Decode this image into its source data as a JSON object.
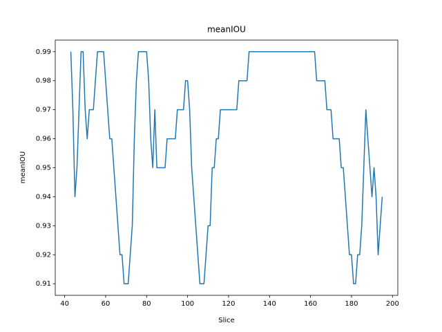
{
  "chart_data": {
    "type": "line",
    "title": "meanIOU",
    "x_label": "Slice",
    "y_label": "meanIOU",
    "x": [
      43,
      44,
      45,
      46,
      47,
      48,
      49,
      50,
      51,
      52,
      54,
      55,
      56,
      59,
      60,
      61,
      62,
      63,
      64,
      65,
      66,
      67,
      68,
      69,
      71,
      72,
      73,
      74,
      75,
      76,
      80,
      81,
      82,
      83,
      84,
      85,
      89,
      90,
      94,
      95,
      98,
      99,
      100,
      101,
      102,
      103,
      104,
      105,
      106,
      108,
      109,
      110,
      111,
      112,
      113,
      114,
      115,
      116,
      124,
      125,
      129,
      130,
      162,
      163,
      167,
      168,
      170,
      171,
      174,
      175,
      176,
      177,
      178,
      179,
      180,
      181,
      182,
      183,
      184,
      185,
      186,
      187,
      188,
      189,
      190,
      191,
      192,
      193,
      194,
      195
    ],
    "series": [
      {
        "name": "meanIOU",
        "color": "#1f77b4",
        "values": [
          0.99,
          0.97,
          0.94,
          0.95,
          0.97,
          0.99,
          0.99,
          0.97,
          0.96,
          0.97,
          0.97,
          0.98,
          0.99,
          0.99,
          0.98,
          0.97,
          0.96,
          0.96,
          0.95,
          0.94,
          0.93,
          0.92,
          0.92,
          0.91,
          0.91,
          0.92,
          0.93,
          0.96,
          0.98,
          0.99,
          0.99,
          0.98,
          0.96,
          0.95,
          0.97,
          0.95,
          0.95,
          0.96,
          0.96,
          0.97,
          0.97,
          0.98,
          0.98,
          0.97,
          0.95,
          0.94,
          0.93,
          0.92,
          0.91,
          0.91,
          0.92,
          0.93,
          0.93,
          0.95,
          0.95,
          0.96,
          0.96,
          0.97,
          0.97,
          0.98,
          0.98,
          0.99,
          0.99,
          0.98,
          0.98,
          0.97,
          0.97,
          0.96,
          0.96,
          0.95,
          0.95,
          0.94,
          0.93,
          0.92,
          0.92,
          0.91,
          0.91,
          0.92,
          0.92,
          0.93,
          0.95,
          0.97,
          0.96,
          0.95,
          0.94,
          0.95,
          0.94,
          0.92,
          0.93,
          0.94
        ]
      }
    ],
    "xlim": [
      35.4,
      202.6
    ],
    "ylim": [
      0.906,
      0.994
    ],
    "xticks": [
      40,
      60,
      80,
      100,
      120,
      140,
      160,
      180,
      200
    ],
    "yticks": [
      0.91,
      0.92,
      0.93,
      0.94,
      0.95,
      0.96,
      0.97,
      0.98,
      0.99
    ]
  }
}
